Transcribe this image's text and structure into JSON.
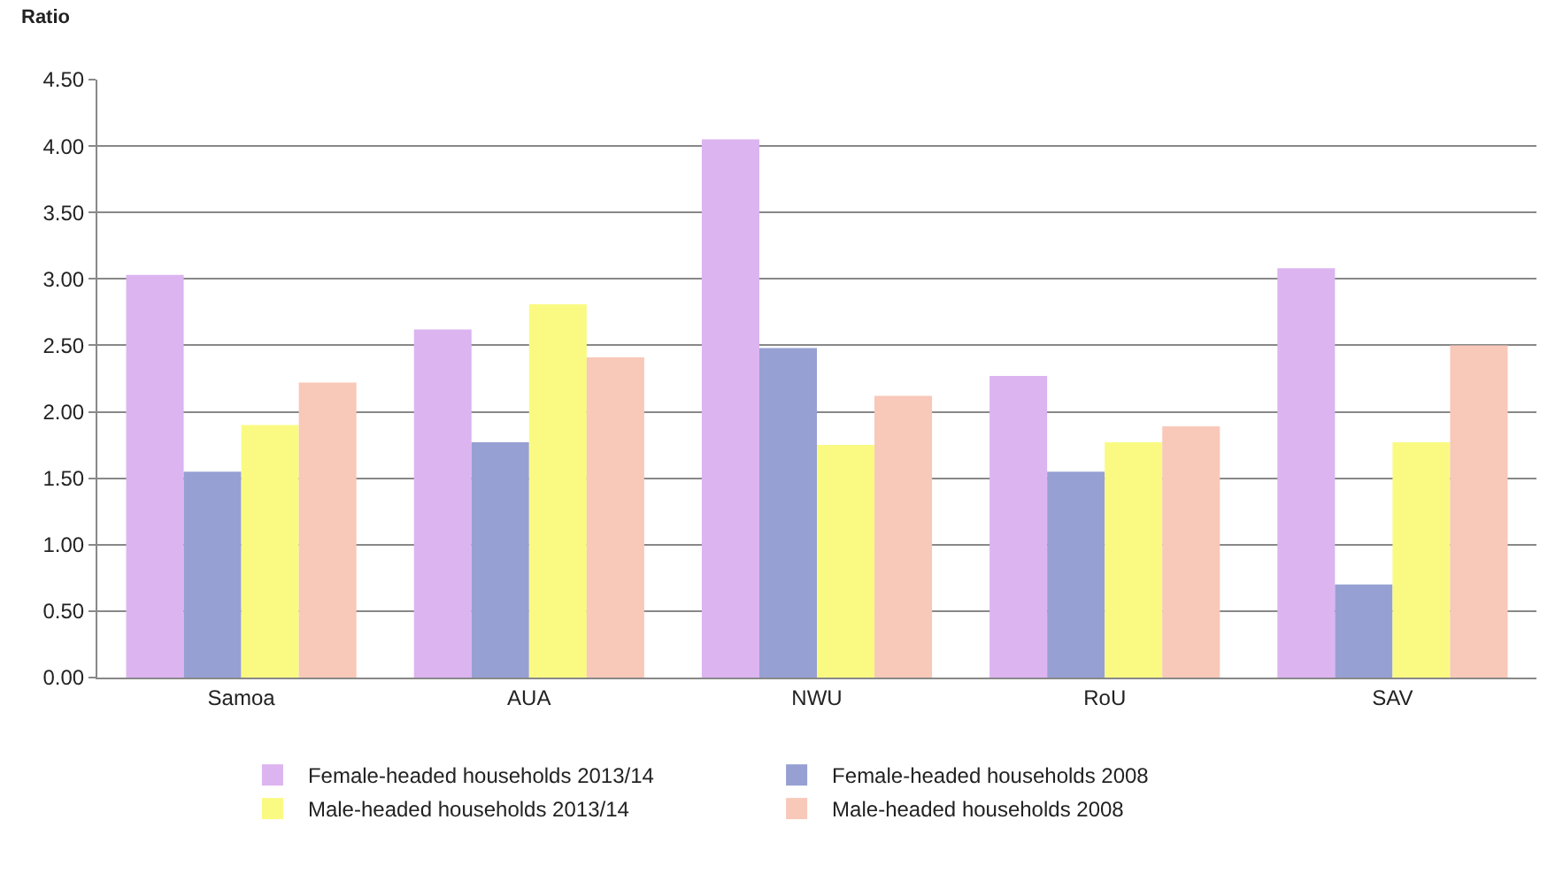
{
  "chart_data": {
    "type": "bar",
    "ylabel": "Ratio",
    "categories": [
      "Samoa",
      "AUA",
      "NWU",
      "RoU",
      "SAV"
    ],
    "series": [
      {
        "name": "Female-headed households 2013/14",
        "color": "#dcb4f0",
        "values": [
          3.03,
          2.62,
          4.05,
          2.27,
          3.08
        ]
      },
      {
        "name": "Female-headed households 2008",
        "color": "#96a0d2",
        "values": [
          1.55,
          1.77,
          2.48,
          1.55,
          0.7
        ]
      },
      {
        "name": "Male-headed households 2013/14",
        "color": "#fafa82",
        "values": [
          1.9,
          2.81,
          1.75,
          1.77,
          1.77
        ]
      },
      {
        "name": "Male-headed households 2008",
        "color": "#f8c8b8",
        "values": [
          2.22,
          2.41,
          2.12,
          1.89,
          2.5
        ]
      }
    ],
    "ylim": [
      0,
      4.5
    ],
    "yticks": [
      {
        "value": 0,
        "label": "0.00"
      },
      {
        "value": 0.5,
        "label": "0.50"
      },
      {
        "value": 1,
        "label": "1.00"
      },
      {
        "value": 1.5,
        "label": "1.50"
      },
      {
        "value": 2,
        "label": "2.00"
      },
      {
        "value": 2.5,
        "label": "2.50"
      },
      {
        "value": 3,
        "label": "3.00"
      },
      {
        "value": 3.5,
        "label": "3.50"
      },
      {
        "value": 4,
        "label": "4.00"
      },
      {
        "value": 4.5,
        "label": "4.50"
      }
    ],
    "grid": "y",
    "legend": "bottom"
  }
}
